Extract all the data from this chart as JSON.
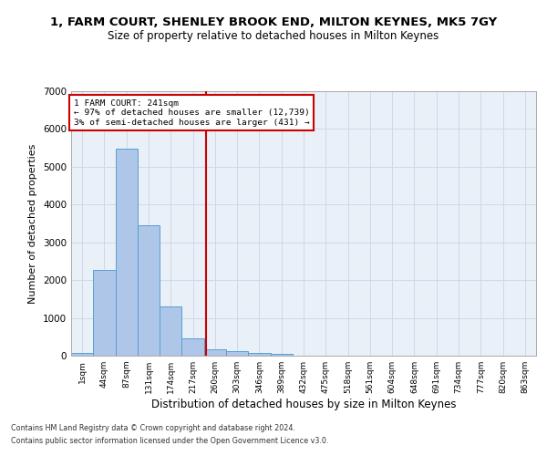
{
  "title": "1, FARM COURT, SHENLEY BROOK END, MILTON KEYNES, MK5 7GY",
  "subtitle": "Size of property relative to detached houses in Milton Keynes",
  "xlabel": "Distribution of detached houses by size in Milton Keynes",
  "ylabel": "Number of detached properties",
  "footnote1": "Contains HM Land Registry data © Crown copyright and database right 2024.",
  "footnote2": "Contains public sector information licensed under the Open Government Licence v3.0.",
  "bar_labels": [
    "1sqm",
    "44sqm",
    "87sqm",
    "131sqm",
    "174sqm",
    "217sqm",
    "260sqm",
    "303sqm",
    "346sqm",
    "389sqm",
    "432sqm",
    "475sqm",
    "518sqm",
    "561sqm",
    "604sqm",
    "648sqm",
    "691sqm",
    "734sqm",
    "777sqm",
    "820sqm",
    "863sqm"
  ],
  "bar_values": [
    75,
    2280,
    5470,
    3440,
    1310,
    470,
    160,
    115,
    80,
    45,
    0,
    0,
    0,
    0,
    0,
    0,
    0,
    0,
    0,
    0,
    0
  ],
  "bar_color": "#aec6e8",
  "bar_edge_color": "#5a9fd4",
  "grid_color": "#d0d8e8",
  "background_color": "#eaf0f8",
  "property_label": "1 FARM COURT: 241sqm",
  "annotation_line1": "← 97% of detached houses are smaller (12,739)",
  "annotation_line2": "3% of semi-detached houses are larger (431) →",
  "vline_color": "#cc0000",
  "annotation_box_color": "#cc0000",
  "ylim": [
    0,
    7000
  ],
  "vline_x": 5.58
}
